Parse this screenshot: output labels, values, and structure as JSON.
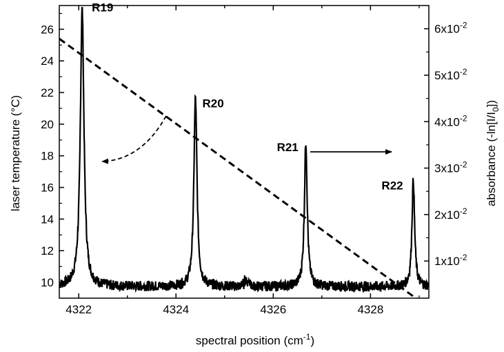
{
  "chart_data": {
    "type": "line",
    "xlabel_main": "spectral position (cm",
    "xlabel_sup": "-1",
    "xlabel_end": ")",
    "ylabel_left": "laser temperature (°C)",
    "ylabel_right_main": "absorbance (-ln[I/I",
    "ylabel_right_sub": "0",
    "ylabel_right_end": "])",
    "xlim": [
      4321.6,
      4329.2
    ],
    "ylim_left": [
      9.0,
      27.5
    ],
    "ylim_right": [
      0.002,
      0.065
    ],
    "x_ticks": [
      4322,
      4324,
      4326,
      4328
    ],
    "y_left_ticks": [
      10,
      12,
      14,
      16,
      18,
      20,
      22,
      24,
      26
    ],
    "y_right_ticks": [
      {
        "mantissa": "1x10",
        "exp": "-2",
        "value": 0.01
      },
      {
        "mantissa": "2x10",
        "exp": "-2",
        "value": 0.02
      },
      {
        "mantissa": "3x10",
        "exp": "-2",
        "value": 0.03
      },
      {
        "mantissa": "4x10",
        "exp": "-2",
        "value": 0.04
      },
      {
        "mantissa": "5x10",
        "exp": "-2",
        "value": 0.05
      },
      {
        "mantissa": "6x10",
        "exp": "-2",
        "value": 0.06
      }
    ],
    "series": [
      {
        "axis": "left",
        "style": "dashed",
        "x": [
          4321.6,
          4329.2
        ],
        "y": [
          25.4,
          8.4
        ]
      },
      {
        "axis": "right",
        "style": "solid",
        "baseline": 0.0045,
        "peaks": [
          {
            "label": "R19",
            "x": 4322.07,
            "y": 0.0643,
            "width": 0.045
          },
          {
            "label": "R20",
            "x": 4324.4,
            "y": 0.0452,
            "width": 0.038
          },
          {
            "label": "R21",
            "x": 4326.67,
            "y": 0.0357,
            "width": 0.035
          },
          {
            "label": "R22",
            "x": 4328.88,
            "y": 0.0275,
            "width": 0.033
          }
        ]
      }
    ],
    "annotations": {
      "left_arrow": "points to left axis (dashed curve = laser temperature)",
      "right_arrow": "points to right axis (solid curve = absorbance)"
    }
  }
}
